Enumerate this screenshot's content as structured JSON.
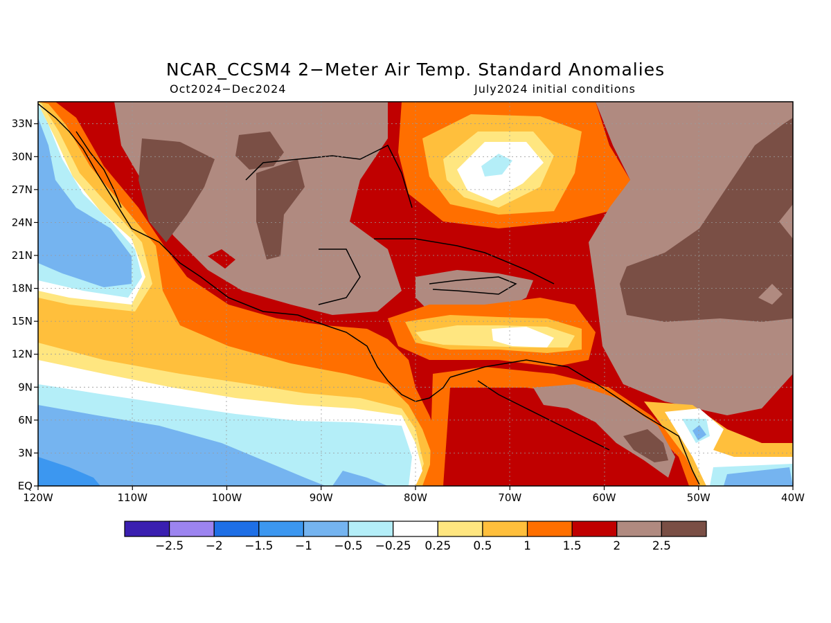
{
  "title": "NCAR_CCSM4 2−Meter Air Temp. Standard Anomalies",
  "subtitle_left": "Oct2024−Dec2024",
  "subtitle_right": "July2024 initial conditions",
  "map": {
    "lon_range": [
      -120,
      -40
    ],
    "lat_range": [
      0,
      35
    ],
    "lat_ticks": [
      "EQ",
      "3N",
      "6N",
      "9N",
      "12N",
      "15N",
      "18N",
      "21N",
      "24N",
      "27N",
      "30N",
      "33N"
    ],
    "lon_ticks": [
      "120W",
      "110W",
      "100W",
      "90W",
      "80W",
      "70W",
      "60W",
      "50W",
      "40W"
    ],
    "grid": "dashed"
  },
  "colorbar": {
    "colors": [
      "#3a1fb0",
      "#9c84f0",
      "#1e6fe6",
      "#3c97f0",
      "#75b4f0",
      "#b4eef8",
      "#ffffff",
      "#ffe680",
      "#ffbf3c",
      "#ff6f00",
      "#c00000",
      "#b08a80",
      "#7a4f45"
    ],
    "labels": [
      "−2.5",
      "−2",
      "−1.5",
      "−1",
      "−0.5",
      "−0.25",
      "0.25",
      "0.5",
      "1",
      "1.5",
      "2",
      "2.5"
    ]
  }
}
